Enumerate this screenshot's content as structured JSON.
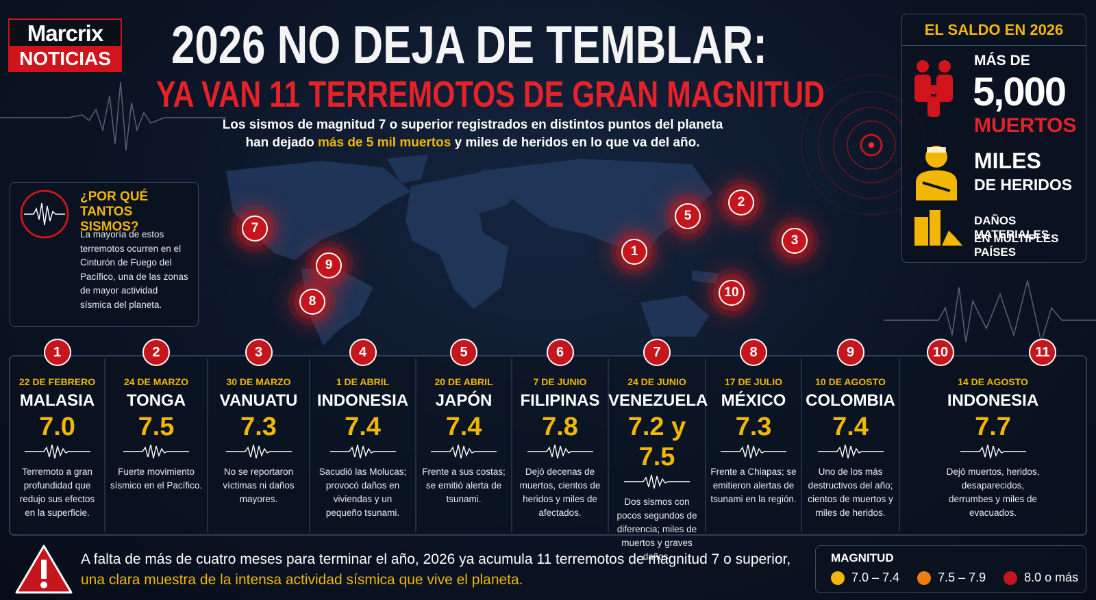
{
  "brand": {
    "line1": "Marcrix",
    "line2": "NOTICIAS"
  },
  "header": {
    "title": "2026 NO DEJA DE TEMBLAR:",
    "subtitle": "YA VAN 11 TERREMOTOS DE GRAN MAGNITUD",
    "intro_line1": "Los sismos de magnitud 7 o superior registrados en distintos puntos del planeta",
    "intro_before": "han dejado",
    "intro_highlight": "más de 5 mil muertos",
    "intro_after": "y miles de heridos en lo que va del año."
  },
  "why": {
    "title": "¿POR QUÉ TANTOS SISMOS?",
    "body": "La mayoría de estos terremotos ocurren en el Cinturón de Fuego del Pacífico, una de las zonas de mayor actividad sísmica del planeta."
  },
  "summary": {
    "title": "EL SALDO EN 2026",
    "deaths_pre": "MÁS DE",
    "deaths_big": "5,000",
    "deaths_label": "MUERTOS",
    "injured_big": "MILES",
    "injured_label": "DE HERIDOS",
    "damage_line1": "DAÑOS MATERIALES",
    "damage_line2": "EN MÚLTIPLES PAÍSES"
  },
  "map": {
    "markers": [
      {
        "label": "7"
      },
      {
        "label": "2"
      },
      {
        "label": "5"
      },
      {
        "label": "3"
      },
      {
        "label": "1"
      },
      {
        "label": "9"
      },
      {
        "label": "10"
      },
      {
        "label": "8"
      }
    ]
  },
  "timeline": {
    "events": [
      {
        "numbers": [
          "1"
        ],
        "date": "22 DE FEBRERO",
        "country": "MALASIA",
        "magnitude": "7.0",
        "description": "Terremoto a gran profundidad que redujo sus efectos en la superficie."
      },
      {
        "numbers": [
          "2"
        ],
        "date": "24 DE MARZO",
        "country": "TONGA",
        "magnitude": "7.5",
        "description": "Fuerte movimiento sísmico en el Pacífico."
      },
      {
        "numbers": [
          "3"
        ],
        "date": "30 DE MARZO",
        "country": "VANUATU",
        "magnitude": "7.3",
        "description": "No se reportaron víctimas ni daños mayores."
      },
      {
        "numbers": [
          "4"
        ],
        "date": "1 DE ABRIL",
        "country": "INDONESIA",
        "magnitude": "7.4",
        "description": "Sacudió las Molucas; provocó daños en viviendas y un pequeño tsunami."
      },
      {
        "numbers": [
          "5"
        ],
        "date": "20 DE ABRIL",
        "country": "JAPÓN",
        "magnitude": "7.4",
        "description": "Frente a sus costas; se emitió alerta de tsunami."
      },
      {
        "numbers": [
          "6"
        ],
        "date": "7 DE JUNIO",
        "country": "FILIPINAS",
        "magnitude": "7.8",
        "description": "Dejó decenas de muertos, cientos de heridos y miles de afectados."
      },
      {
        "numbers": [
          "7"
        ],
        "date": "24 DE JUNIO",
        "country": "VENEZUELA",
        "magnitude": "7.2 y 7.5",
        "description": "Dos sismos con pocos segundos de diferencia; miles de muertos y graves daños."
      },
      {
        "numbers": [
          "8"
        ],
        "date": "17 DE JULIO",
        "country": "MÉXICO",
        "magnitude": "7.3",
        "description": "Frente a Chiapas; se emitieron alertas de tsunami en la región."
      },
      {
        "numbers": [
          "9"
        ],
        "date": "10 DE AGOSTO",
        "country": "COLOMBIA",
        "magnitude": "7.4",
        "description": "Uno de los más destructivos del año; cientos de muertos y miles de heridos."
      },
      {
        "numbers": [
          "10",
          "11"
        ],
        "date": "14 DE AGOSTO",
        "country": "INDONESIA",
        "magnitude": "7.7",
        "description": "Dejó muertos, heridos, desaparecidos, derrumbes y miles de evacuados."
      }
    ]
  },
  "footer": {
    "line1": "A falta de más de cuatro meses para terminar el año, 2026 ya acumula 11 terremotos de magnitud 7 o superior,",
    "line2": "una clara muestra de la intensa actividad sísmica que vive el planeta."
  },
  "legend": {
    "title": "MAGNITUD",
    "items": [
      {
        "label": "7.0 – 7.4",
        "color": "#f2b705"
      },
      {
        "label": "7.5 – 7.9",
        "color": "#f07c12"
      },
      {
        "label": "8.0 o más",
        "color": "#c4161c"
      }
    ]
  }
}
